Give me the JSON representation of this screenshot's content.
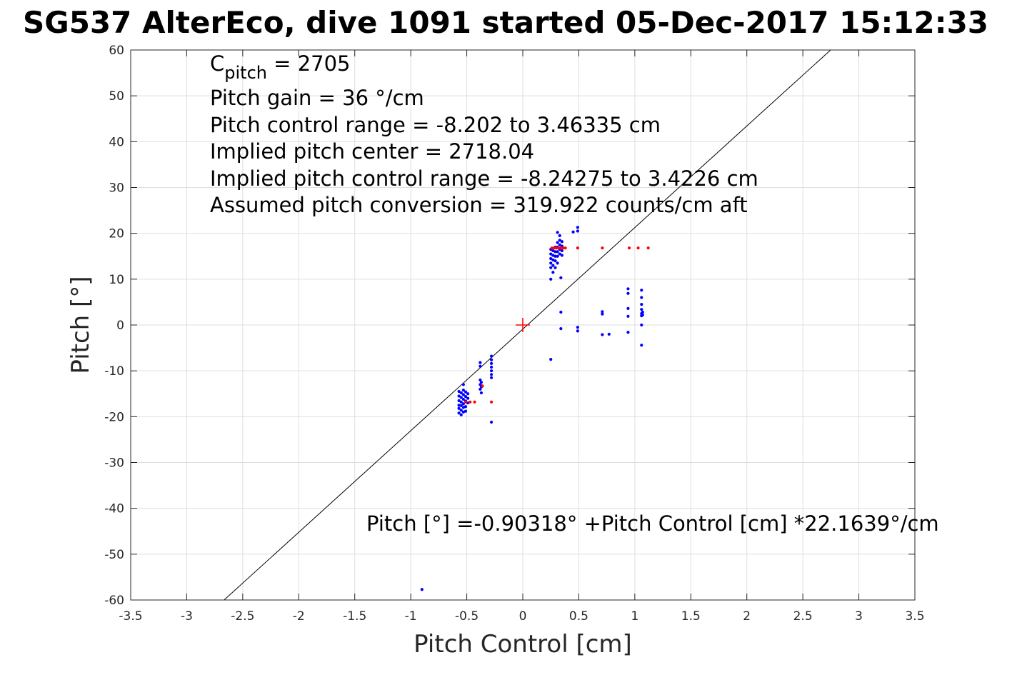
{
  "chart_data": {
    "type": "scatter",
    "title": "SG537 AlterEco, dive 1091 started 05-Dec-2017 15:12:33",
    "xlabel": "Pitch Control [cm]",
    "ylabel": "Pitch [°]",
    "xlim": [
      -3.5,
      3.5
    ],
    "ylim": [
      -60,
      60
    ],
    "xticks": [
      "-3.5",
      "-3",
      "-2.5",
      "-2",
      "-1.5",
      "-1",
      "-0.5",
      "0",
      "0.5",
      "1",
      "1.5",
      "2",
      "2.5",
      "3",
      "3.5"
    ],
    "yticks": [
      "60",
      "50",
      "40",
      "30",
      "20",
      "10",
      "0",
      "-10",
      "-20",
      "-30",
      "-40",
      "-50",
      "-60"
    ],
    "grid": true,
    "annotations": {
      "cpitch_prefix": "C",
      "cpitch_sub": "pitch",
      "cpitch_value": " = 2705",
      "pitch_gain": "Pitch gain = 36 °/cm",
      "control_range": "Pitch control range = -8.202 to 3.46335 cm",
      "implied_center": "Implied pitch center = 2718.04",
      "implied_range": "Implied pitch control range = -8.24275 to 3.4226 cm",
      "conversion": "Assumed pitch conversion = 319.922 counts/cm aft",
      "fit_equation": "Pitch [°] =-0.90318° +Pitch Control [cm] *22.1639°/cm"
    },
    "fit_line": {
      "intercept": -0.90318,
      "slope": 22.1639,
      "color": "#000000"
    },
    "center_marker": {
      "x": 0,
      "y": 0,
      "color": "#ff0000"
    },
    "series": [
      {
        "color": "#0000ff",
        "points": [
          [
            -0.57,
            -14.5
          ],
          [
            -0.57,
            -15.5
          ],
          [
            -0.57,
            -16.5
          ],
          [
            -0.57,
            -17.5
          ],
          [
            -0.57,
            -18.2
          ],
          [
            -0.57,
            -19.2
          ],
          [
            -0.55,
            -14.8
          ],
          [
            -0.55,
            -15.8
          ],
          [
            -0.55,
            -16.8
          ],
          [
            -0.55,
            -17.6
          ],
          [
            -0.55,
            -18.6
          ],
          [
            -0.55,
            -19.6
          ],
          [
            -0.53,
            -13.0
          ],
          [
            -0.53,
            -14.2
          ],
          [
            -0.53,
            -15.2
          ],
          [
            -0.53,
            -16.2
          ],
          [
            -0.53,
            -17.2
          ],
          [
            -0.53,
            -18.0
          ],
          [
            -0.53,
            -19.0
          ],
          [
            -0.51,
            -14.6
          ],
          [
            -0.51,
            -15.6
          ],
          [
            -0.51,
            -16.6
          ],
          [
            -0.51,
            -17.8
          ],
          [
            -0.51,
            -18.8
          ],
          [
            -0.49,
            -15.0
          ],
          [
            -0.49,
            -16.0
          ],
          [
            -0.49,
            -17.0
          ],
          [
            -0.38,
            -8.2
          ],
          [
            -0.38,
            -9.0
          ],
          [
            -0.38,
            -12.0
          ],
          [
            -0.38,
            -13.0
          ],
          [
            -0.38,
            -14.0
          ],
          [
            -0.37,
            -12.5
          ],
          [
            -0.37,
            -13.5
          ],
          [
            -0.37,
            -14.8
          ],
          [
            -0.28,
            -6.8
          ],
          [
            -0.28,
            -7.6
          ],
          [
            -0.28,
            -8.4
          ],
          [
            -0.28,
            -9.2
          ],
          [
            -0.28,
            -10.0
          ],
          [
            -0.28,
            -10.8
          ],
          [
            -0.28,
            -11.5
          ],
          [
            -0.28,
            -21.2
          ],
          [
            -0.9,
            -57.7
          ],
          [
            0.25,
            10.0
          ],
          [
            0.25,
            12.5
          ],
          [
            0.25,
            13.5
          ],
          [
            0.25,
            14.5
          ],
          [
            0.25,
            15.5
          ],
          [
            0.25,
            16.5
          ],
          [
            0.27,
            11.5
          ],
          [
            0.27,
            13.0
          ],
          [
            0.27,
            14.2
          ],
          [
            0.27,
            15.2
          ],
          [
            0.27,
            16.2
          ],
          [
            0.29,
            12.5
          ],
          [
            0.29,
            14.0
          ],
          [
            0.29,
            15.0
          ],
          [
            0.29,
            16.0
          ],
          [
            0.29,
            17.0
          ],
          [
            0.31,
            13.5
          ],
          [
            0.31,
            15.0
          ],
          [
            0.31,
            16.0
          ],
          [
            0.31,
            17.0
          ],
          [
            0.31,
            18.0
          ],
          [
            0.31,
            20.2
          ],
          [
            0.33,
            15.5
          ],
          [
            0.33,
            16.5
          ],
          [
            0.33,
            17.5
          ],
          [
            0.33,
            18.5
          ],
          [
            0.33,
            19.5
          ],
          [
            0.35,
            15.2
          ],
          [
            0.35,
            16.2
          ],
          [
            0.35,
            17.2
          ],
          [
            0.35,
            18.2
          ],
          [
            0.34,
            10.3
          ],
          [
            0.34,
            2.8
          ],
          [
            0.34,
            -0.8
          ],
          [
            0.45,
            20.3
          ],
          [
            0.49,
            20.5
          ],
          [
            0.49,
            21.3
          ],
          [
            0.49,
            -0.5
          ],
          [
            0.49,
            -1.3
          ],
          [
            0.25,
            -7.5
          ],
          [
            0.71,
            2.9
          ],
          [
            0.71,
            2.4
          ],
          [
            0.71,
            -2.1
          ],
          [
            0.77,
            -2.0
          ],
          [
            0.94,
            7.9
          ],
          [
            0.94,
            6.9
          ],
          [
            0.94,
            3.6
          ],
          [
            0.94,
            1.9
          ],
          [
            0.94,
            -1.6
          ],
          [
            1.06,
            7.6
          ],
          [
            1.06,
            6.0
          ],
          [
            1.06,
            4.5
          ],
          [
            1.06,
            3.4
          ],
          [
            1.06,
            2.5
          ],
          [
            1.06,
            2.0
          ],
          [
            1.06,
            0.0
          ],
          [
            1.06,
            -4.4
          ],
          [
            1.07,
            2.8
          ],
          [
            1.07,
            2.2
          ]
        ]
      },
      {
        "color": "#ff0000",
        "points": [
          [
            -0.51,
            -16.8
          ],
          [
            -0.47,
            -16.8
          ],
          [
            -0.43,
            -16.8
          ],
          [
            -0.36,
            -13.3
          ],
          [
            -0.28,
            -16.8
          ],
          [
            0.26,
            16.8
          ],
          [
            0.28,
            16.8
          ],
          [
            0.3,
            16.8
          ],
          [
            0.32,
            16.8
          ],
          [
            0.34,
            16.8
          ],
          [
            0.36,
            16.8
          ],
          [
            0.38,
            16.8
          ],
          [
            0.49,
            16.8
          ],
          [
            0.71,
            16.8
          ],
          [
            0.95,
            16.8
          ],
          [
            1.03,
            16.8
          ],
          [
            1.12,
            16.8
          ]
        ]
      }
    ]
  }
}
